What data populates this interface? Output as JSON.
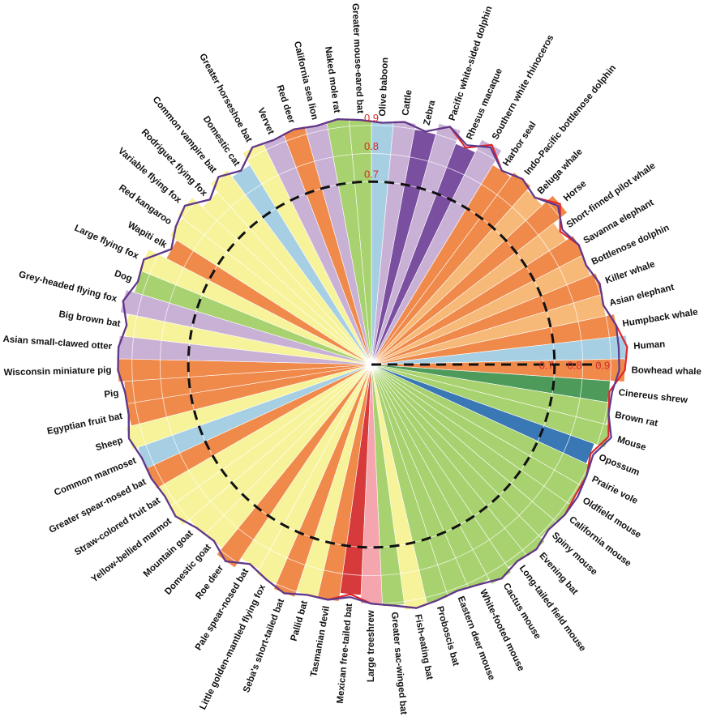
{
  "chart_data": {
    "type": "radar",
    "categories": [
      "Olive baboon",
      "Cattle",
      "Zebra",
      "Pacific white-sided dolphin",
      "Rhesus macaque",
      "Southern white rhinoceros",
      "Harbor seal",
      "Indo-Pacific bottlenose dolphin",
      "Beluga whale",
      "Horse",
      "Short-finned pilot whale",
      "Savanna elephant",
      "Bottlenose dolphin",
      "Killer whale",
      "Asian elephant",
      "Humpback whale",
      "Human",
      "Bowhead whale",
      "Cinereus shrew",
      "Brown rat",
      "Mouse",
      "Opossum",
      "Prairie vole",
      "Oldfield mouse",
      "California mouse",
      "Spiny mouse",
      "Evening bat",
      "Long-tailed field mouse",
      "Cactus mouse",
      "White-footed mouse",
      "Eastern deer mouse",
      "Proboscis bat",
      "Fish-eating bat",
      "Greater sac-winged bat",
      "Large treeshrew",
      "Mexican free-tailed bat",
      "Tasmanian devil",
      "Pallid bat",
      "Seba's short-tailed bat",
      "Little golden-mantled flying fox",
      "Pale spear-nosed bat",
      "Roe deer",
      "Domestic goat",
      "Mountain goat",
      "Yellow-bellied marmot",
      "Straw-colored fruit bat",
      "Greater spear-nosed bat",
      "Common marmoset",
      "Sheep",
      "Egyptian fruit bat",
      "Pig",
      "Wisconsin miniature pig",
      "Asian small-clawed otter",
      "Big brown bat",
      "Grey-headed flying fox",
      "Dog",
      "Large flying fox",
      "Wapiti elk",
      "Red kangaroo",
      "Variable flying fox",
      "Rodriguez flying fox",
      "Common vampire bat",
      "Domestic cat",
      "Greater horseshoe bat",
      "Vervet",
      "Red deer",
      "California sea lion",
      "Naked mole rat",
      "Greater mouse-eared bat"
    ],
    "category_colors": [
      "#a6cfe3",
      "#c9b1d6",
      "#7b4fa0",
      "#c9b1d6",
      "#7b4fa0",
      "#c9b1d6",
      "#f08a4b",
      "#f08a4b",
      "#f7b978",
      "#f08a4b",
      "#f7b978",
      "#f08a4b",
      "#f7b978",
      "#f08a4b",
      "#f7b978",
      "#f08a4b",
      "#a6cfe3",
      "#f08a4b",
      "#4e9a5a",
      "#a8d26f",
      "#a8d26f",
      "#3a78b5",
      "#a8d26f",
      "#a8d26f",
      "#a8d26f",
      "#a8d26f",
      "#a8d26f",
      "#a8d26f",
      "#a8d26f",
      "#a8d26f",
      "#a8d26f",
      "#a8d26f",
      "#f7f39a",
      "#a8d26f",
      "#f4a5ae",
      "#d63a3a",
      "#f08a4b",
      "#f7f39a",
      "#f08a4b",
      "#f7f39a",
      "#f7f39a",
      "#f08a4b",
      "#f7f39a",
      "#f7f39a",
      "#f7f39a",
      "#f7f39a",
      "#f08a4b",
      "#a6cfe3",
      "#f7f39a",
      "#f08a4b",
      "#f08a4b",
      "#f08a4b",
      "#c9b1d6",
      "#f7f39a",
      "#c9b1d6",
      "#a8d26f",
      "#f7f39a",
      "#f08a4b",
      "#f7f39a",
      "#f7f39a",
      "#f7f39a",
      "#f7f39a",
      "#a6cfe3",
      "#f7f39a",
      "#c9b1d6",
      "#f08a4b",
      "#c9b1d6",
      "#a8d26f",
      "#a8d26f"
    ],
    "series": [
      {
        "color": "#e0262b",
        "values": [
          0.91,
          0.92,
          0.9,
          0.94,
          0.89,
          0.94,
          0.88,
          0.9,
          0.88,
          0.93,
          0.87,
          0.9,
          0.89,
          0.91,
          0.9,
          0.93,
          0.96,
          0.95,
          0.9,
          0.91,
          0.93,
          0.89,
          0.91,
          0.91,
          0.92,
          0.91,
          0.93,
          0.92,
          0.94,
          0.92,
          0.91,
          0.92,
          0.93,
          0.91,
          0.9,
          0.87,
          0.9,
          0.9,
          0.92,
          0.9,
          0.88,
          0.92,
          0.89,
          0.9,
          0.93,
          0.92,
          0.93,
          0.93,
          0.95,
          0.93,
          0.93,
          0.95,
          0.95,
          0.93,
          0.96,
          0.93,
          0.94,
          0.87,
          0.9,
          0.92,
          0.87,
          0.91,
          0.88,
          0.93,
          0.92,
          0.93,
          0.92,
          0.93,
          0.92
        ]
      },
      {
        "color": "#5b3a8e",
        "values": [
          0.91,
          0.92,
          0.9,
          0.94,
          0.9,
          0.93,
          0.88,
          0.9,
          0.88,
          0.92,
          0.88,
          0.9,
          0.89,
          0.91,
          0.9,
          0.93,
          0.93,
          0.93,
          0.91,
          0.91,
          0.94,
          0.9,
          0.91,
          0.92,
          0.92,
          0.91,
          0.93,
          0.92,
          0.94,
          0.92,
          0.91,
          0.92,
          0.93,
          0.91,
          0.9,
          0.88,
          0.9,
          0.9,
          0.92,
          0.9,
          0.88,
          0.92,
          0.89,
          0.9,
          0.93,
          0.92,
          0.93,
          0.93,
          0.95,
          0.93,
          0.93,
          0.95,
          0.95,
          0.93,
          0.96,
          0.93,
          0.94,
          0.87,
          0.9,
          0.92,
          0.87,
          0.91,
          0.88,
          0.93,
          0.92,
          0.93,
          0.92,
          0.93,
          0.92
        ]
      }
    ],
    "rlim": [
      0.05,
      1.0
    ],
    "rticks": [
      0.7,
      0.8,
      0.9
    ],
    "tick_color": "#d42a2a",
    "grid": true
  }
}
